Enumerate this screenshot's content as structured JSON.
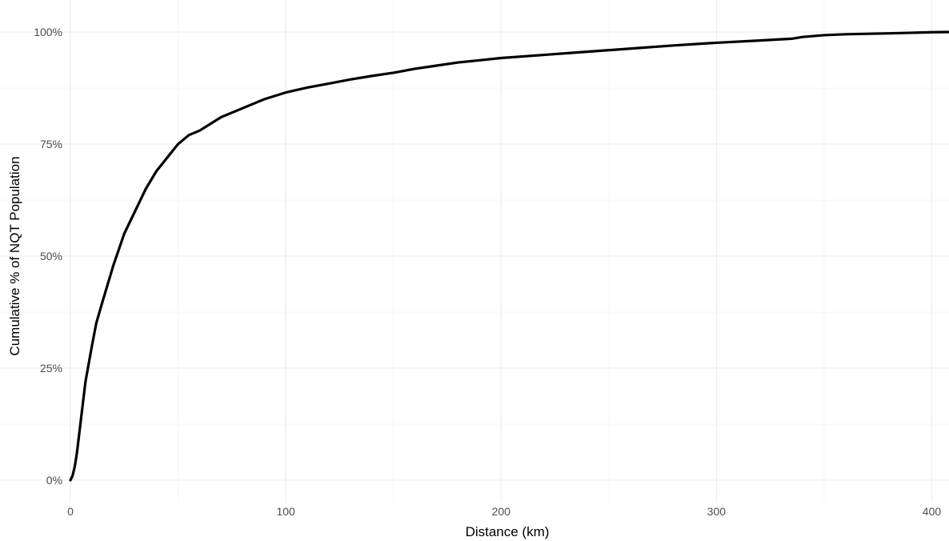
{
  "chart_data": {
    "type": "line",
    "title": "",
    "xlabel": "Distance (km)",
    "ylabel": "Cumulative % of NQT Population",
    "xlim": [
      0,
      408
    ],
    "ylim": [
      0,
      100
    ],
    "x_ticks": [
      0,
      100,
      200,
      300,
      400
    ],
    "x_tick_labels": [
      "0",
      "100",
      "200",
      "300",
      "400"
    ],
    "y_ticks": [
      0,
      25,
      50,
      75,
      100
    ],
    "y_tick_labels": [
      "0%",
      "25%",
      "50%",
      "75%",
      "100%"
    ],
    "grid": true,
    "legend": "none",
    "line_color": "#000000",
    "series": [
      {
        "x": [
          0,
          1,
          2,
          3,
          4,
          5,
          7,
          10,
          12,
          15,
          20,
          25,
          30,
          35,
          40,
          45,
          50,
          55,
          60,
          70,
          80,
          90,
          100,
          110,
          120,
          130,
          140,
          150,
          160,
          170,
          180,
          190,
          200,
          220,
          240,
          260,
          280,
          300,
          320,
          335,
          340,
          345,
          350,
          360,
          380,
          400,
          408
        ],
        "y": [
          0,
          1,
          3,
          6,
          10,
          14,
          22,
          30,
          35,
          40,
          48,
          55,
          60,
          65,
          69,
          72,
          75,
          77,
          78,
          81,
          83,
          85,
          86.5,
          87.6,
          88.5,
          89.4,
          90.2,
          90.9,
          91.8,
          92.5,
          93.2,
          93.7,
          94.2,
          94.9,
          95.6,
          96.3,
          97.0,
          97.6,
          98.1,
          98.5,
          98.9,
          99.1,
          99.3,
          99.5,
          99.7,
          99.95,
          100
        ]
      }
    ]
  }
}
